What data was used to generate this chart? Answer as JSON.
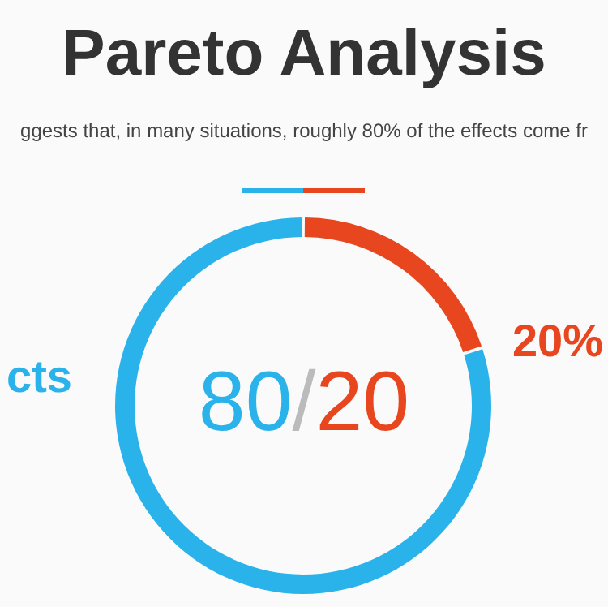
{
  "chart_data": {
    "type": "donut",
    "title": "Pareto Analysis",
    "subtitle": "ggests that, in many situations, roughly 80% of the effects come fr",
    "categories": [
      "cts",
      "20%"
    ],
    "values": [
      80,
      20
    ],
    "colors": [
      "#29b3ea",
      "#e8461e"
    ],
    "annotations": [
      "80/20"
    ]
  }
}
